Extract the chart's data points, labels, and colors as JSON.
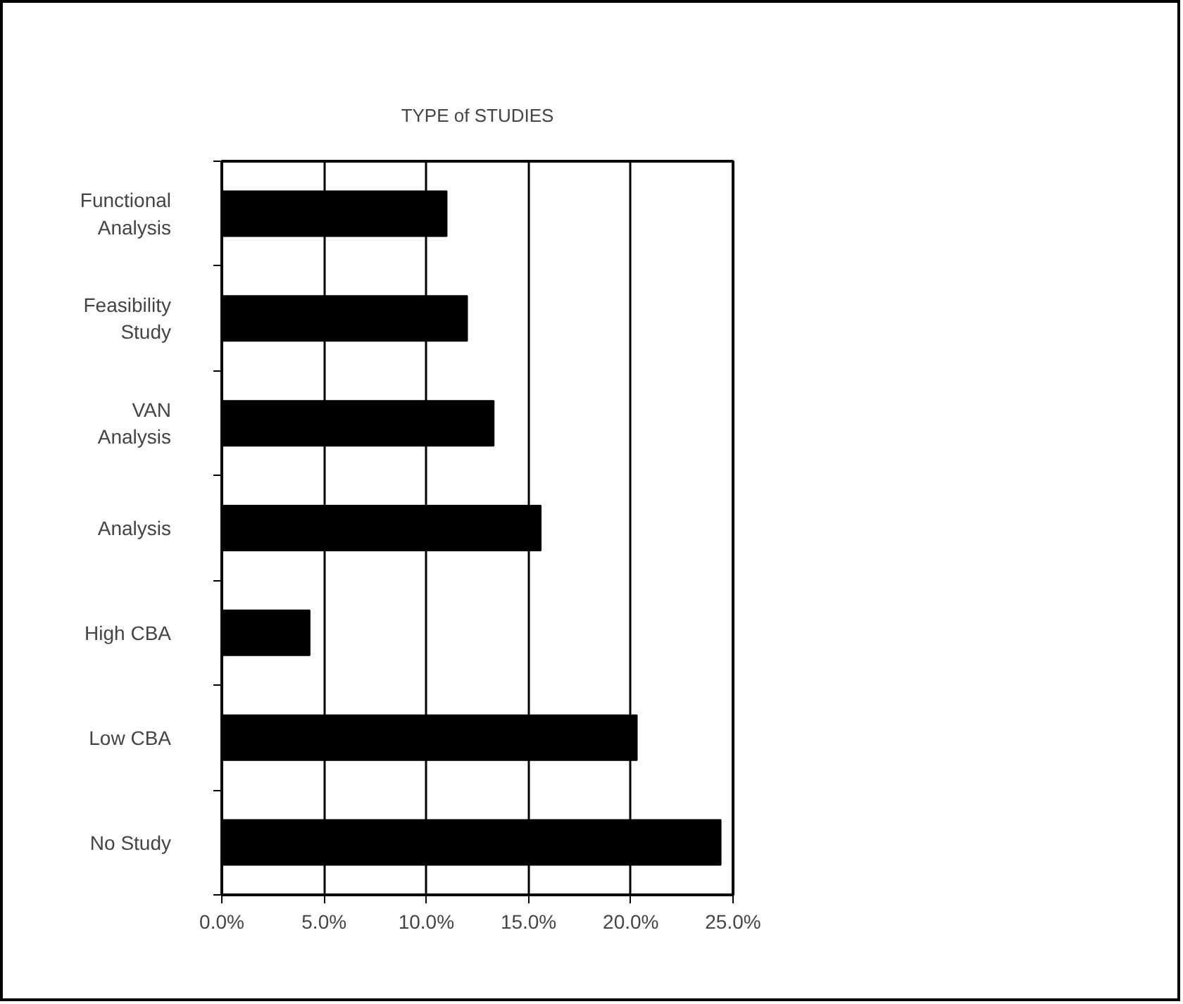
{
  "chart_data": {
    "type": "bar",
    "orientation": "horizontal",
    "title": "TYPE of STUDIES",
    "categories": [
      "Functional\nAnalysis",
      "Feasibility\nStudy",
      "VAN\nAnalysis",
      "Analysis",
      "High CBA",
      "Low CBA",
      "No Study"
    ],
    "values": [
      0.11,
      0.12,
      0.133,
      0.156,
      0.043,
      0.203,
      0.244
    ],
    "color": "#000000",
    "xlim": [
      0,
      0.25
    ],
    "xticks": [
      {
        "value": 0,
        "label": "0.0%"
      },
      {
        "value": 0.05,
        "label": "5.0%"
      },
      {
        "value": 0.1,
        "label": "10.0%"
      },
      {
        "value": 0.15,
        "label": "15.0%"
      },
      {
        "value": 0.2,
        "label": "20.0%"
      },
      {
        "value": 0.25,
        "label": "25.0%"
      }
    ],
    "grid": "x"
  }
}
